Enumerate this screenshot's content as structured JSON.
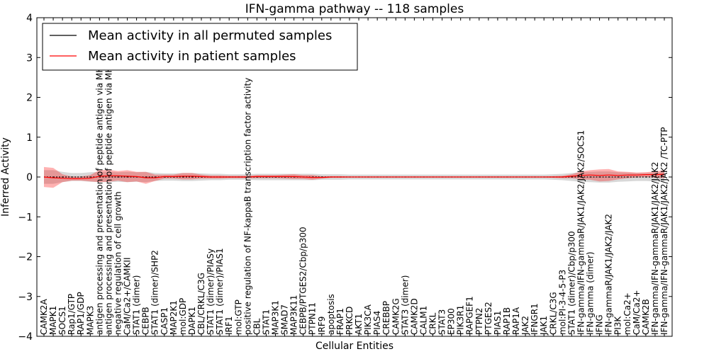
{
  "chart_data": {
    "type": "line",
    "title": "IFN-gamma pathway -- 118 samples",
    "xlabel": "Cellular Entities",
    "ylabel": "Inferred Activity",
    "ylim": [
      -4,
      4
    ],
    "yticks": [
      -4,
      -3,
      -2,
      -1,
      0,
      1,
      2,
      3,
      4
    ],
    "grid": false,
    "legend_position": "top-left",
    "categories": [
      "CAMK2A",
      "MAPK1",
      "SOCS1",
      "Rap1/GTP",
      "RAP1/GDP",
      "MAPK3",
      "antigen processing and presentation of peptide antigen via MHC class I",
      "antigen processing and presentation of peptide antigen via MHC class II",
      "negative regulation of cell growth",
      "CaM/Ca2+/CAMKII",
      "STAT1 (dimer)",
      "CEBPB",
      "STAT1 (dimer)/SHP2",
      "CASP1",
      "MAP2K1",
      "mol:GDP",
      "DAPK1",
      "CBL/CRKL/C3G",
      "STAT1 (dimer)/PIASy",
      "STAT1 (dimer)/PIAS1",
      "IRF1",
      "mol:GTP",
      "positive regulation of NF-kappaB transcription factor activity",
      "CBL",
      "STAT1",
      "MAP3K1",
      "SMAD7",
      "MAP3K11",
      "CEBPB/PTGES2/Cbp/p300",
      "PTPN11",
      "IRF9",
      "apoptosis",
      "FRAP1",
      "PRKCD",
      "AKT1",
      "PIK3CA",
      "PIAS4",
      "CREBBP",
      "CAMK2G",
      "STAT3 (dimer)",
      "CAMK2D",
      "CALM1",
      "CRKL",
      "STAT3",
      "EP300",
      "PIK3R1",
      "RAPGEF1",
      "PTPN2",
      "PTGES2",
      "PIAS1",
      "RAP1B",
      "RAP1A",
      "JAK2",
      "IFNGR1",
      "JAK1",
      "CRKL/C3G",
      "mol:PI-3-4-5-P3",
      "STAT1 (dimer)/Cbp/p300",
      "IFN-gamma/IFN-gammaR/JAK1/JAK2/JAK2/SOCS1",
      "IFN-gamma (dimer)",
      "IFNG",
      "IFN-gammaR/JAK1/JAK2/JAK2",
      "PI3K",
      "mol:Ca2+",
      "CaM/Ca2+",
      "CAMK2B",
      "IFN-gamma/IFN-gammaR/JAK1/JAK2/JAK2",
      "IFN-gamma/IFN-gammaR/JAK1/JAK2/JAK2  /TC-PTP"
    ],
    "series": [
      {
        "name": "Mean activity in all permuted samples",
        "color": "#000000",
        "values": [
          0,
          0,
          0,
          0,
          0,
          0,
          0,
          0,
          0,
          0,
          0,
          0,
          0,
          0,
          0,
          0,
          0,
          0,
          0,
          0,
          0,
          0,
          0,
          0,
          0,
          0,
          0,
          0,
          0,
          0,
          0,
          0,
          0,
          0,
          0,
          0,
          0,
          0,
          0,
          0,
          0,
          0,
          0,
          0,
          0,
          0,
          0,
          0,
          0,
          0,
          0,
          0,
          0,
          0,
          0,
          0,
          0,
          0,
          0,
          0,
          0,
          0,
          0,
          0,
          0,
          0,
          0,
          0
        ]
      },
      {
        "name": "Mean activity in patient samples",
        "color": "#ff0000",
        "band_color": "#ff0000",
        "values": [
          0.0,
          -0.02,
          -0.03,
          -0.04,
          -0.04,
          -0.03,
          0.02,
          0.03,
          0.03,
          0.02,
          0.01,
          -0.02,
          -0.02,
          0.01,
          0.01,
          0.02,
          0.02,
          0.01,
          0.0,
          0.0,
          0.0,
          0.0,
          0.0,
          0.01,
          0.01,
          0.01,
          0.01,
          0.01,
          0.0,
          -0.01,
          -0.01,
          0.0,
          0.0,
          0.0,
          0.0,
          0.0,
          0.0,
          0.0,
          0.0,
          0.0,
          0.0,
          0.0,
          0.0,
          0.0,
          0.0,
          0.0,
          0.0,
          0.0,
          0.0,
          0.0,
          0.0,
          0.0,
          0.0,
          0.0,
          0.0,
          0.0,
          0.0,
          0.02,
          0.04,
          0.05,
          0.04,
          0.05,
          0.04,
          0.05,
          0.05,
          0.06,
          0.06,
          0.07
        ],
        "std": [
          0.25,
          0.25,
          0.1,
          0.05,
          0.05,
          0.08,
          0.15,
          0.15,
          0.12,
          0.15,
          0.12,
          0.15,
          0.08,
          0.05,
          0.05,
          0.08,
          0.08,
          0.05,
          0.04,
          0.04,
          0.03,
          0.03,
          0.03,
          0.04,
          0.04,
          0.04,
          0.05,
          0.06,
          0.05,
          0.06,
          0.03,
          0.02,
          0.02,
          0.01,
          0.01,
          0.01,
          0.01,
          0.01,
          0.01,
          0.01,
          0.01,
          0.01,
          0.01,
          0.01,
          0.01,
          0.01,
          0.01,
          0.01,
          0.01,
          0.01,
          0.01,
          0.01,
          0.01,
          0.01,
          0.01,
          0.02,
          0.03,
          0.05,
          0.1,
          0.12,
          0.15,
          0.15,
          0.1,
          0.08,
          0.06,
          0.06,
          0.08,
          0.1
        ]
      }
    ],
    "permuted_std": [
      0.17,
      0.17,
      0.13,
      0.1,
      0.1,
      0.12,
      0.13,
      0.13,
      0.12,
      0.13,
      0.12,
      0.13,
      0.1,
      0.09,
      0.09,
      0.1,
      0.1,
      0.09,
      0.08,
      0.08,
      0.07,
      0.07,
      0.07,
      0.08,
      0.08,
      0.08,
      0.08,
      0.08,
      0.08,
      0.08,
      0.07,
      0.07,
      0.07,
      0.06,
      0.06,
      0.06,
      0.06,
      0.06,
      0.06,
      0.06,
      0.06,
      0.06,
      0.06,
      0.06,
      0.06,
      0.06,
      0.06,
      0.06,
      0.06,
      0.06,
      0.06,
      0.06,
      0.06,
      0.06,
      0.06,
      0.07,
      0.08,
      0.1,
      0.12,
      0.13,
      0.14,
      0.14,
      0.12,
      0.11,
      0.1,
      0.1,
      0.11,
      0.12
    ],
    "permuted_band_color": "#c8c8c8"
  }
}
